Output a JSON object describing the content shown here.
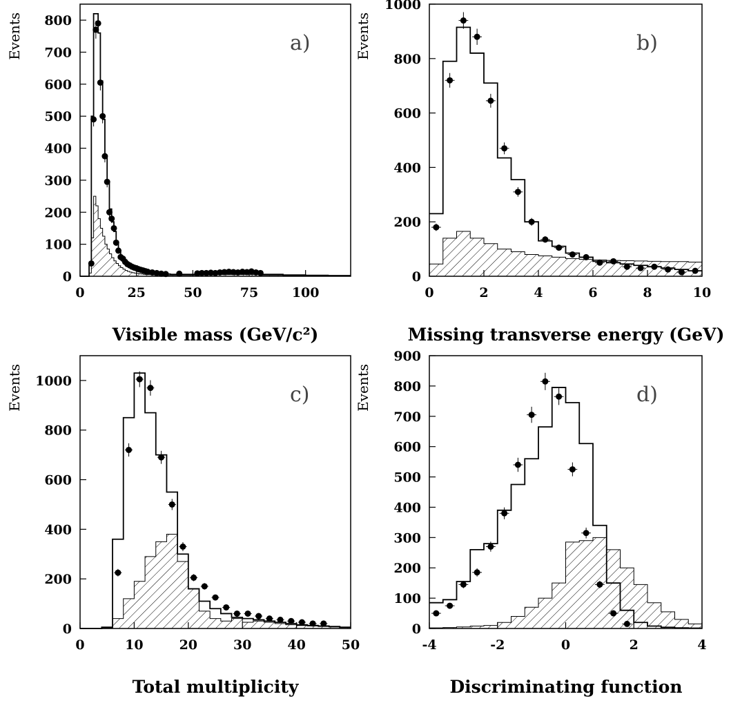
{
  "chart_data": [
    {
      "type": "histogram",
      "panel_label": "a)",
      "xlabel": "Visible mass (GeV/c²)",
      "ylabel": "Events",
      "xlim": [
        0,
        120
      ],
      "ylim": [
        0,
        850
      ],
      "xticks": [
        0,
        25,
        50,
        75,
        100
      ],
      "yticks": [
        0,
        100,
        200,
        300,
        400,
        500,
        600,
        700,
        800
      ],
      "bin_edges": [
        0,
        2,
        4,
        5,
        6,
        7,
        8,
        9,
        10,
        11,
        12,
        13,
        14,
        15,
        16,
        17,
        18,
        19,
        20,
        21,
        22,
        23,
        24,
        25,
        26,
        27,
        28,
        29,
        30,
        32,
        34,
        36,
        38,
        40,
        44,
        48,
        52,
        56,
        60,
        64,
        68,
        72,
        76,
        80,
        90,
        100,
        110,
        120
      ],
      "series": [
        {
          "role": "total",
          "values": [
            0,
            0,
            40,
            500,
            820,
            820,
            760,
            610,
            490,
            370,
            290,
            210,
            170,
            140,
            100,
            75,
            60,
            55,
            45,
            38,
            33,
            28,
            25,
            22,
            20,
            18,
            16,
            14,
            12,
            10,
            9,
            8,
            7,
            6,
            6,
            6,
            7,
            8,
            9,
            10,
            10,
            10,
            10,
            6,
            4,
            3,
            2
          ]
        },
        {
          "role": "background",
          "values": [
            0,
            0,
            10,
            120,
            250,
            220,
            180,
            150,
            125,
            100,
            85,
            70,
            58,
            48,
            40,
            33,
            27,
            22,
            18,
            15,
            13,
            11,
            10,
            9,
            8,
            7,
            6,
            5,
            5,
            4,
            4,
            3,
            3,
            3,
            3,
            3,
            4,
            4,
            5,
            5,
            5,
            5,
            5,
            3,
            2,
            1,
            1
          ]
        }
      ],
      "points": {
        "x": [
          5,
          6,
          7,
          8,
          9,
          10,
          11,
          12,
          13,
          14,
          15,
          16,
          17,
          18,
          19,
          20,
          21,
          22,
          23,
          24,
          25,
          26,
          27,
          28,
          29,
          30,
          32,
          34,
          36,
          38,
          44,
          52,
          54,
          56,
          58,
          60,
          62,
          64,
          66,
          68,
          70,
          72,
          74,
          76,
          78,
          80
        ],
        "y": [
          40,
          490,
          770,
          790,
          605,
          500,
          375,
          295,
          200,
          180,
          150,
          105,
          80,
          60,
          55,
          45,
          38,
          34,
          30,
          27,
          25,
          22,
          20,
          18,
          16,
          14,
          12,
          10,
          8,
          7,
          8,
          9,
          10,
          10,
          11,
          10,
          12,
          13,
          14,
          13,
          12,
          14,
          13,
          15,
          12,
          10
        ]
      }
    },
    {
      "type": "histogram",
      "panel_label": "b)",
      "xlabel": "Missing transverse energy (GeV)",
      "ylabel": "Events",
      "xlim": [
        0,
        10
      ],
      "ylim": [
        0,
        1000
      ],
      "xticks": [
        0,
        2,
        4,
        6,
        8,
        10
      ],
      "yticks": [
        0,
        200,
        400,
        600,
        800,
        1000
      ],
      "bin_edges": [
        0,
        0.5,
        1,
        1.5,
        2,
        2.5,
        3,
        3.5,
        4,
        4.5,
        5,
        5.5,
        6,
        6.5,
        7,
        7.5,
        8,
        8.5,
        9,
        9.5,
        10
      ],
      "series": [
        {
          "role": "total",
          "values": [
            230,
            790,
            915,
            820,
            710,
            435,
            355,
            200,
            130,
            110,
            85,
            70,
            55,
            50,
            45,
            40,
            35,
            30,
            25,
            20
          ]
        },
        {
          "role": "background",
          "values": [
            45,
            140,
            165,
            140,
            120,
            100,
            90,
            80,
            75,
            70,
            65,
            62,
            60,
            58,
            57,
            56,
            55,
            54,
            54,
            52
          ]
        }
      ],
      "points": {
        "x": [
          0.25,
          0.75,
          1.25,
          1.75,
          2.25,
          2.75,
          3.25,
          3.75,
          4.25,
          4.75,
          5.25,
          5.75,
          6.25,
          6.75,
          7.25,
          7.75,
          8.25,
          8.75,
          9.25,
          9.75
        ],
        "y": [
          180,
          720,
          940,
          880,
          645,
          470,
          310,
          200,
          135,
          105,
          80,
          70,
          50,
          55,
          35,
          30,
          35,
          25,
          15,
          20
        ]
      }
    },
    {
      "type": "histogram",
      "panel_label": "c)",
      "xlabel": "Total multiplicity",
      "ylabel": "Events",
      "xlim": [
        0,
        50
      ],
      "ylim": [
        0,
        1100
      ],
      "xticks": [
        0,
        10,
        20,
        30,
        40,
        50
      ],
      "yticks": [
        0,
        200,
        400,
        600,
        800,
        1000
      ],
      "bin_edges": [
        0,
        2,
        4,
        6,
        8,
        10,
        12,
        14,
        16,
        18,
        20,
        22,
        24,
        26,
        28,
        30,
        32,
        34,
        36,
        38,
        40,
        42,
        44,
        46,
        48,
        50
      ],
      "series": [
        {
          "role": "total",
          "values": [
            0,
            0,
            5,
            360,
            850,
            1030,
            870,
            700,
            550,
            300,
            160,
            110,
            80,
            60,
            45,
            40,
            35,
            30,
            25,
            20,
            15,
            12,
            10,
            8,
            5
          ]
        },
        {
          "role": "background",
          "values": [
            0,
            0,
            2,
            40,
            120,
            190,
            290,
            350,
            380,
            270,
            160,
            70,
            40,
            30,
            40,
            25,
            30,
            25,
            20,
            15,
            12,
            10,
            8,
            6,
            4
          ]
        }
      ],
      "points": {
        "x": [
          7,
          9,
          11,
          13,
          15,
          17,
          19,
          21,
          23,
          25,
          27,
          29,
          31,
          33,
          35,
          37,
          39,
          41,
          43,
          45
        ],
        "y": [
          225,
          720,
          1005,
          970,
          690,
          500,
          330,
          205,
          170,
          125,
          85,
          60,
          60,
          50,
          40,
          35,
          30,
          25,
          20,
          20
        ]
      }
    },
    {
      "type": "histogram",
      "panel_label": "d)",
      "xlabel": "Discriminating function",
      "ylabel": "Events",
      "xlim": [
        -4,
        4
      ],
      "ylim": [
        0,
        900
      ],
      "xticks": [
        -4,
        -2,
        0,
        2,
        4
      ],
      "yticks": [
        0,
        100,
        200,
        300,
        400,
        500,
        600,
        700,
        800,
        900
      ],
      "bin_edges": [
        -4,
        -3.6,
        -3.2,
        -2.8,
        -2.4,
        -2,
        -1.6,
        -1.2,
        -0.8,
        -0.4,
        0,
        0.4,
        0.8,
        1.2,
        1.6,
        2,
        2.4,
        2.8,
        3.2,
        3.6,
        4
      ],
      "series": [
        {
          "role": "total",
          "values": [
            85,
            95,
            155,
            260,
            280,
            390,
            475,
            560,
            665,
            795,
            745,
            610,
            340,
            150,
            60,
            20,
            8,
            4,
            2,
            1
          ]
        },
        {
          "role": "background",
          "values": [
            2,
            3,
            5,
            8,
            10,
            20,
            40,
            70,
            100,
            150,
            285,
            290,
            300,
            260,
            200,
            145,
            85,
            55,
            30,
            15
          ]
        }
      ],
      "points": {
        "x": [
          -3.8,
          -3.4,
          -3.0,
          -2.6,
          -2.2,
          -1.8,
          -1.4,
          -1.0,
          -0.6,
          -0.2,
          0.2,
          0.6,
          1.0,
          1.4,
          1.8
        ],
        "y": [
          50,
          75,
          145,
          185,
          270,
          380,
          540,
          705,
          815,
          765,
          525,
          315,
          145,
          50,
          15
        ]
      }
    }
  ]
}
